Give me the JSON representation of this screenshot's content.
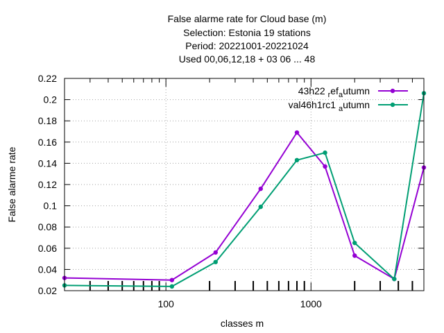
{
  "chart_data": {
    "type": "line",
    "title_lines": [
      "False alarme rate  for Cloud base (m)",
      "Selection: Estonia      19 stations",
      "Period: 20221001-20221024",
      "Used  00,06,12,18  + 03 06 ... 48"
    ],
    "xlabel": "classes m",
    "ylabel": "False alarme rate",
    "x_scale": "log",
    "xlim": [
      20,
      6000
    ],
    "ylim": [
      0.02,
      0.22
    ],
    "y_ticks": [
      "0.02",
      "0.04",
      "0.06",
      "0.08",
      "0.1",
      "0.12",
      "0.14",
      "0.16",
      "0.18",
      "0.2",
      "0.22"
    ],
    "x_ticks": [
      "100",
      "1000"
    ],
    "grid": true,
    "legend_position": "top-right",
    "series": [
      {
        "name_main": "43h22",
        "name_parts": [
          {
            "text": " ",
            "sub": false
          },
          {
            "text": "r",
            "sub": true
          },
          {
            "text": "ef",
            "sub": false
          },
          {
            "text": "a",
            "sub": true
          },
          {
            "text": "utumn",
            "sub": false
          }
        ],
        "color": "#9400d3",
        "x": [
          20,
          110,
          220,
          450,
          800,
          1250,
          2000,
          3750,
          6000
        ],
        "y": [
          0.032,
          0.03,
          0.056,
          0.116,
          0.169,
          0.137,
          0.053,
          0.031,
          0.136
        ]
      },
      {
        "name_main": "val46h1rc1",
        "name_parts": [
          {
            "text": " ",
            "sub": false
          },
          {
            "text": "a",
            "sub": true
          },
          {
            "text": "utumn",
            "sub": false
          }
        ],
        "color": "#009e73",
        "x": [
          20,
          110,
          220,
          450,
          800,
          1250,
          2000,
          3750,
          6000
        ],
        "y": [
          0.025,
          0.024,
          0.047,
          0.099,
          0.143,
          0.15,
          0.065,
          0.031,
          0.206
        ]
      }
    ]
  }
}
